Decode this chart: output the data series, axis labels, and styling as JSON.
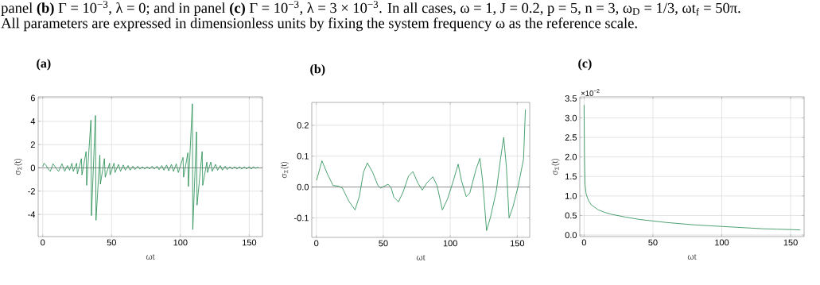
{
  "chart_data": [
    {
      "type": "line",
      "title": "(a)",
      "xlabel": "ωt",
      "ylabel": "σ$_{Σ}$(t)",
      "annotations": [
        "panel **(b)** Γ = 10$^{−3}$, λ = 0; and in panel **(c)** Γ = 10$^{−3}$, λ = 3 × 10$^{−3}$. In all cases, ω = 1, J = 0.2, p = 5, n = 3, ω$_{D}$ = 1/3, ωt$_{f}$ = 50π.",
        "All parameters are expressed in dimensionless units by fixing the system frequency ω as the reference scale."
      ],
      "x": [
        0,
        1,
        2.5,
        4,
        5.5,
        7.5,
        9.5,
        11.5,
        14,
        16,
        18,
        19.5,
        21.2,
        22.2,
        24.6,
        25.2,
        28.1,
        28.5,
        31.5,
        31.9,
        35.0,
        35.4,
        38.3,
        38.7,
        41.5,
        41.9,
        44.8,
        45.4,
        48.6,
        48.9,
        51.8,
        52.5,
        55,
        56.5,
        58.5,
        60,
        62,
        63.5,
        65.5,
        67,
        69,
        70.5,
        72.5,
        74,
        76,
        77.5,
        79.5,
        81,
        83,
        84.5,
        86.5,
        88,
        90,
        91.5,
        93.5,
        95,
        97,
        98.5,
        101.9,
        102.3,
        105.4,
        105.8,
        108.7,
        109.0,
        111.7,
        112.1,
        115.8,
        116.2,
        119.2,
        119.7,
        122.1,
        123,
        125.5,
        127,
        129,
        130.5,
        132.5,
        134,
        136,
        137.5,
        139.5,
        141,
        143,
        144.5,
        146.5,
        148,
        150,
        151.5,
        153,
        154.5,
        156,
        157
      ],
      "values": [
        0.1,
        0.4,
        0.2,
        -0.1,
        -0.3,
        0.35,
        0,
        -0.3,
        0.35,
        -0.3,
        0.2,
        -0.2,
        0.4,
        -0.3,
        0.4,
        -0.5,
        0.8,
        -0.6,
        1.4,
        -1.5,
        4.1,
        -4.1,
        4.5,
        -4.5,
        1.1,
        -1.4,
        0.8,
        -0.8,
        0.4,
        -0.6,
        0.4,
        -0.4,
        0.3,
        -0.3,
        0.25,
        -0.2,
        0.2,
        -0.2,
        0.15,
        -0.15,
        0.15,
        -0.1,
        0.1,
        -0.1,
        0.1,
        -0.1,
        0.15,
        -0.1,
        0.15,
        -0.15,
        0.2,
        -0.2,
        0.25,
        -0.25,
        0.3,
        -0.3,
        0.35,
        -0.4,
        0.9,
        -0.8,
        1.3,
        -1.6,
        5.5,
        -5.3,
        3.1,
        -3.2,
        1.4,
        -1.5,
        0.5,
        -0.4,
        0.5,
        -0.3,
        0.3,
        -0.2,
        0.2,
        -0.2,
        0.15,
        -0.15,
        0.1,
        -0.1,
        0.1,
        -0.1,
        0.1,
        -0.1,
        0.1,
        -0.1,
        0.1,
        -0.1,
        0.1,
        -0.05,
        0.05,
        0
      ],
      "color": "#1f8a4c",
      "line_style": "solid",
      "marker": "none",
      "grid": true,
      "xlim": [
        -3.3,
        159.6
      ],
      "ylim": [
        -5.9,
        6.1
      ],
      "xticks": [
        0,
        50,
        100,
        150
      ],
      "yticks": [
        -4,
        -2,
        0,
        2,
        4,
        6
      ],
      "ref_lines": [
        {
          "axis": "y",
          "value": 0,
          "color": "#555555"
        }
      ]
    },
    {
      "type": "line",
      "title": "(b)",
      "xlabel": "ωt",
      "ylabel": "σ$_{Σ}$(t)",
      "x": [
        0.2,
        4.2,
        8.5,
        12.5,
        16.4,
        19.4,
        24.3,
        28.9,
        32.2,
        35.2,
        38.1,
        42,
        46,
        48,
        50,
        53.6,
        55.9,
        57.9,
        61.3,
        64.8,
        68.8,
        72.1,
        75.7,
        79.1,
        82.6,
        87,
        90.1,
        94.1,
        98,
        102.4,
        105.9,
        108.3,
        111.9,
        114.6,
        119.2,
        122.1,
        124.1,
        127.1,
        130,
        134.4,
        137.5,
        139.9,
        141.9,
        143.9,
        146.8,
        150.8,
        154.7,
        156.1
      ],
      "values": [
        0.022,
        0.085,
        0.04,
        0.005,
        0.003,
        -0.003,
        -0.046,
        -0.074,
        -0.029,
        0.048,
        0.078,
        0.048,
        0.005,
        -0.003,
        0.001,
        0.009,
        -0.003,
        -0.033,
        -0.048,
        -0.016,
        0.035,
        0.05,
        0.014,
        -0.01,
        0.014,
        0.033,
        0.005,
        -0.074,
        -0.038,
        0.022,
        0.074,
        0.022,
        -0.031,
        -0.019,
        0.057,
        0.093,
        0.022,
        -0.141,
        -0.098,
        -0.012,
        0.091,
        0.161,
        0.065,
        -0.1,
        -0.064,
        0.005,
        0.091,
        0.251
      ],
      "color": "#1f8a4c",
      "line_style": "solid",
      "marker": "none",
      "grid": true,
      "xlim": [
        -3.4,
        159.3
      ],
      "ylim": [
        -0.163,
        0.274
      ],
      "xticks": [
        0,
        50,
        100,
        150
      ],
      "yticks": [
        -0.1,
        {
          "value": 0,
          "label": "0.0"
        },
        0.1,
        0.2
      ],
      "ref_lines": [
        {
          "axis": "y",
          "value": 0,
          "color": "#555555"
        }
      ]
    },
    {
      "type": "line",
      "title": "(c)",
      "xlabel": "ωt",
      "ylabel": "σ$_{Σ}$(t)",
      "annotations": [
        "×10$^{−2}$"
      ],
      "x": [
        0,
        0.3,
        0.7,
        1.5,
        3,
        5,
        10,
        15,
        20,
        30,
        40,
        50,
        60,
        70,
        80,
        90,
        100,
        110,
        120,
        130,
        140,
        150,
        157
      ],
      "values": [
        3.33,
        2.0,
        1.3,
        1.05,
        0.9,
        0.78,
        0.65,
        0.58,
        0.53,
        0.46,
        0.4,
        0.36,
        0.32,
        0.29,
        0.26,
        0.24,
        0.22,
        0.2,
        0.18,
        0.16,
        0.15,
        0.14,
        0.13
      ],
      "color": "#1f8a4c",
      "line_style": "solid",
      "marker": "none",
      "grid": true,
      "xlim": [
        -3.1,
        159.8
      ],
      "ylim": [
        -0.04,
        3.54
      ],
      "xticks": [
        0,
        50,
        100,
        150
      ],
      "yticks": [
        {
          "value": 0,
          "label": "0.0"
        },
        0.5,
        {
          "value": 1,
          "label": "1.0"
        },
        1.5,
        {
          "value": 2,
          "label": "2.0"
        },
        2.5,
        {
          "value": 3,
          "label": "3.0"
        },
        3.5
      ]
    }
  ]
}
